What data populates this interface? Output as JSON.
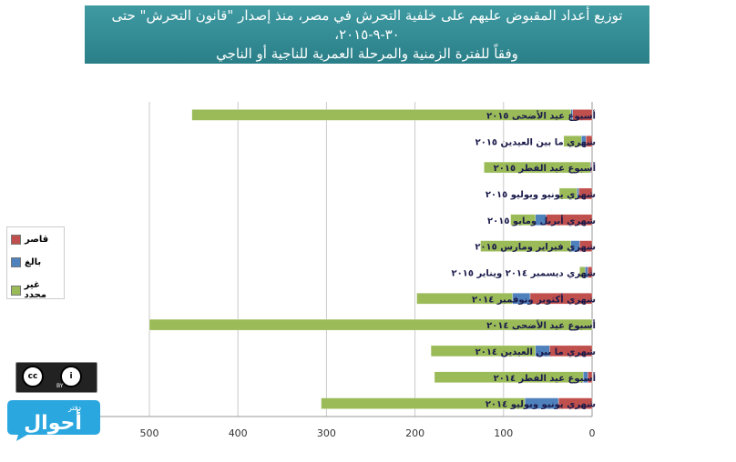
{
  "title": {
    "line1": "توزيع أعداد المقبوض عليهم على خلفية التحرش في مصر، منذ إصدار \"قانون التحرش\" حتى ٣٠-٩-٢٠١٥،",
    "line2": "وفقاً للفترة الزمنية والمرحلة العمرية للناجية أو الناجي"
  },
  "logo": {
    "text": "أحوال",
    "small_text": "دفتر"
  },
  "license": {
    "by_label": "BY"
  },
  "colors": {
    "qasir": "#c0504d",
    "baligh": "#4f81bd",
    "ghayr": "#9bbb59"
  },
  "chart_data": {
    "type": "bar",
    "orientation": "horizontal-stacked",
    "categories": [
      "أسبوع عيد الأضحى ٢٠١٥",
      "شهري ما بين العيدين ٢٠١٥",
      "أسبوع عيد الفطر ٢٠١٥",
      "شهري يونيو ويوليو ٢٠١٥",
      "شهري أبريل ومايو ٢٠١٥",
      "شهري فبراير ومارس ٢٠١٥",
      "شهري ديسمبر ٢٠١٤ ويناير ٢٠١٥",
      "شهري أكتوبر ونوفمبر ٢٠١٤",
      "أسبوع عيد الأضحى ٢٠١٤",
      "شهري ما بين العيدين ٢٠١٤",
      "أسبوع عيد الفطر ٢٠١٤",
      "شهري يونيو ويوليو ٢٠١٤"
    ],
    "series": [
      {
        "name": "قاصر",
        "color": "#c0504d",
        "values": [
          22,
          7,
          1,
          15,
          52,
          14,
          5,
          70,
          0,
          48,
          5,
          38
        ]
      },
      {
        "name": "بالغ",
        "color": "#4f81bd",
        "values": [
          2,
          5,
          1,
          2,
          12,
          10,
          3,
          20,
          0,
          16,
          5,
          38
        ]
      },
      {
        "name": "غير محدد",
        "color": "#9bbb59",
        "values": [
          428,
          20,
          120,
          20,
          28,
          102,
          6,
          108,
          500,
          118,
          168,
          230
        ]
      }
    ],
    "xticks": [
      0,
      100,
      200,
      300,
      400,
      500
    ],
    "xlim": [
      0,
      500
    ],
    "legend_position": "left",
    "grid": true
  }
}
